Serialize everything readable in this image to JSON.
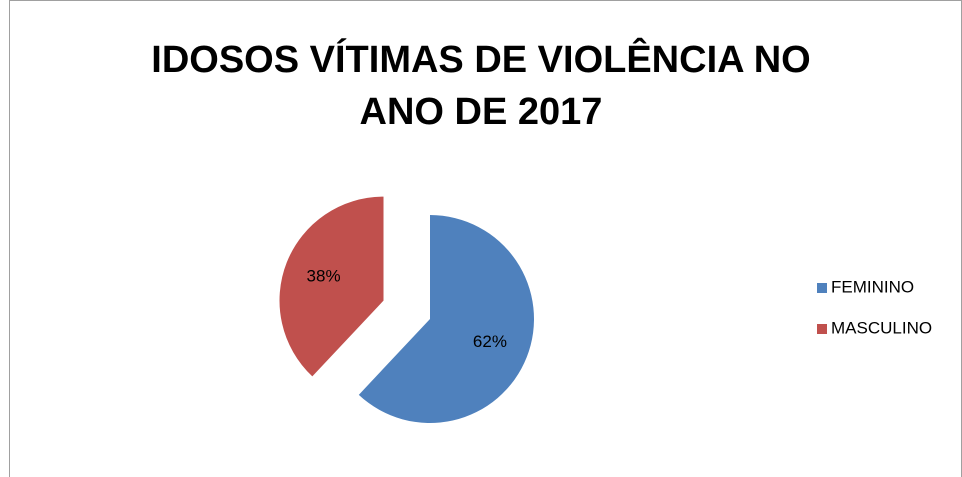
{
  "chart_data": {
    "type": "pie",
    "title": "IDOSOS VÍTIMAS DE VIOLÊNCIA NO ANO DE 2017",
    "categories": [
      "FEMININO",
      "MASCULINO"
    ],
    "values": [
      62,
      38
    ],
    "value_labels": [
      "62%",
      "38%"
    ],
    "colors": [
      "#4f81bd",
      "#c0504d"
    ],
    "exploded": [
      false,
      true
    ],
    "legend": "right"
  }
}
